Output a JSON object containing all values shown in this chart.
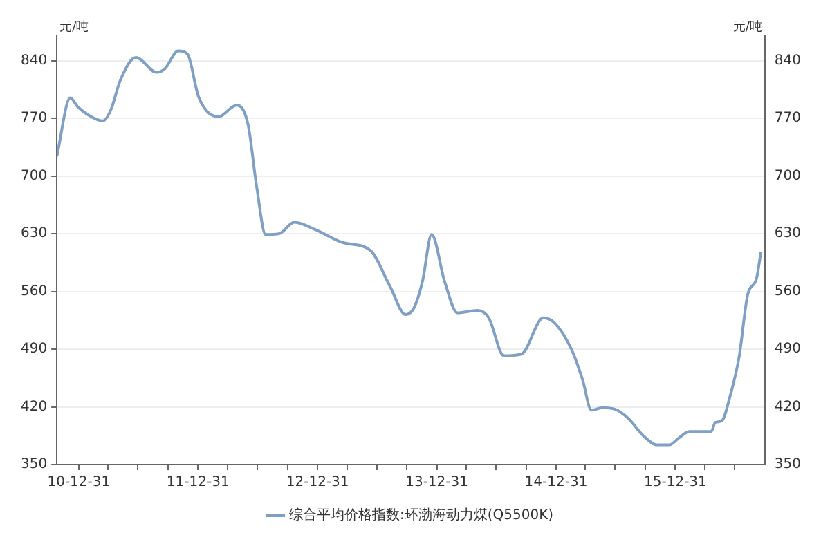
{
  "chart_data": {
    "type": "line",
    "ylabel": "元/吨",
    "y2label": "元/吨",
    "x": [
      "2010-10-25",
      "2010-12-05",
      "2010-12-28",
      "2011-01-30",
      "2011-03-15",
      "2011-04-08",
      "2011-05-08",
      "2011-06-24",
      "2011-08-26",
      "2011-09-20",
      "2011-11-01",
      "2011-11-29",
      "2012-01-02",
      "2012-03-03",
      "2012-04-27",
      "2012-06-01",
      "2012-06-28",
      "2012-07-25",
      "2012-09-04",
      "2012-10-21",
      "2012-12-24",
      "2013-03-21",
      "2013-06-10",
      "2013-08-10",
      "2013-09-26",
      "2013-10-22",
      "2013-11-17",
      "2013-12-15",
      "2014-01-24",
      "2014-03-04",
      "2014-05-05",
      "2014-06-08",
      "2014-07-24",
      "2014-09-16",
      "2014-11-22",
      "2014-12-26",
      "2015-02-17",
      "2015-03-22",
      "2015-04-18",
      "2015-05-21",
      "2015-06-30",
      "2015-08-09",
      "2015-09-24",
      "2015-11-04",
      "2015-12-14",
      "2016-01-10",
      "2016-02-12",
      "2016-04-19",
      "2016-05-01",
      "2016-05-21",
      "2016-06-17",
      "2016-07-13",
      "2016-08-09",
      "2016-09-04",
      "2016-09-18"
    ],
    "series": [
      {
        "name": "综合平均价格指数:环渤海动力煤(Q5500K)",
        "color": "#7f9fc4",
        "values": [
          724,
          795,
          784,
          774,
          767,
          780,
          817,
          844,
          826,
          830,
          852,
          848,
          796,
          772,
          786,
          763,
          686,
          629,
          630,
          644,
          635,
          619,
          610,
          566,
          532,
          540,
          572,
          629,
          572,
          534,
          537,
          528,
          482,
          484,
          528,
          522,
          489,
          453,
          416,
          419,
          417,
          406,
          385,
          374,
          374,
          382,
          390,
          390,
          401,
          403,
          435,
          480,
          557,
          575,
          608
        ]
      }
    ],
    "xlim": [
      "2010-10-25",
      "2016-09-30"
    ],
    "xticks": [
      {
        "value": "2010-12-31",
        "label": "10-12-31"
      },
      {
        "value": "2011-03-31",
        "label": null
      },
      {
        "value": "2011-06-30",
        "label": null
      },
      {
        "value": "2011-09-30",
        "label": null
      },
      {
        "value": "2011-12-31",
        "label": "11-12-31"
      },
      {
        "value": "2012-03-31",
        "label": null
      },
      {
        "value": "2012-06-30",
        "label": null
      },
      {
        "value": "2012-09-30",
        "label": null
      },
      {
        "value": "2012-12-31",
        "label": "12-12-31"
      },
      {
        "value": "2013-03-31",
        "label": null
      },
      {
        "value": "2013-06-30",
        "label": null
      },
      {
        "value": "2013-09-30",
        "label": null
      },
      {
        "value": "2013-12-31",
        "label": "13-12-31"
      },
      {
        "value": "2014-03-31",
        "label": null
      },
      {
        "value": "2014-06-30",
        "label": null
      },
      {
        "value": "2014-09-30",
        "label": null
      },
      {
        "value": "2014-12-31",
        "label": "14-12-31"
      },
      {
        "value": "2015-03-31",
        "label": null
      },
      {
        "value": "2015-06-30",
        "label": null
      },
      {
        "value": "2015-09-30",
        "label": null
      },
      {
        "value": "2015-12-31",
        "label": "15-12-31"
      },
      {
        "value": "2016-03-31",
        "label": null
      },
      {
        "value": "2016-06-30",
        "label": null
      }
    ],
    "ylim": [
      350,
      870
    ],
    "yticks": [
      350,
      420,
      490,
      560,
      630,
      700,
      770,
      840
    ],
    "y2lim": [
      350,
      870
    ],
    "y2ticks": [
      350,
      420,
      490,
      560,
      630,
      700,
      770,
      840
    ],
    "grid": "y",
    "legend": "bottom",
    "marker": "none",
    "line_style": "solid"
  }
}
